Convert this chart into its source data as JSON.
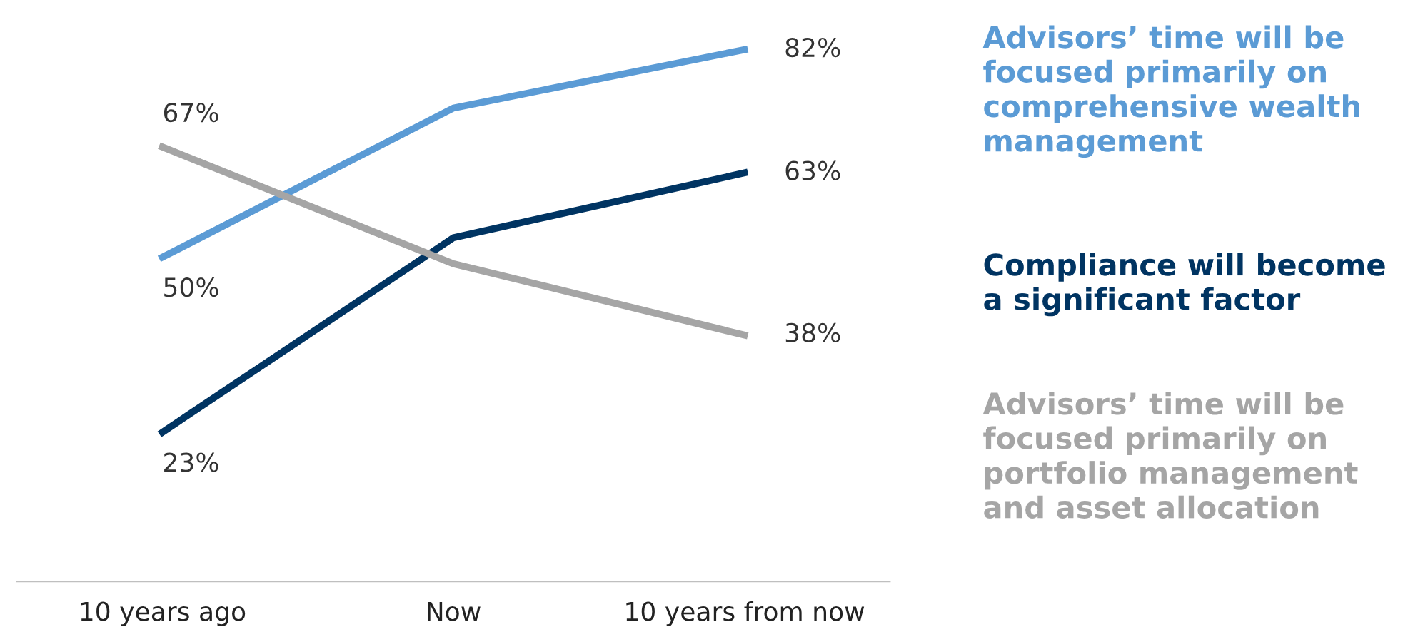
{
  "chart_data": {
    "type": "line",
    "categories": [
      "10 years ago",
      "Now",
      "10 years from now"
    ],
    "grid": false,
    "legend": "right",
    "marker": "none",
    "line_style": "solid",
    "series": [
      {
        "name": "Advisors’ time will be focused primarily on comprehensive wealth management",
        "color": "#5b9bd5",
        "values": [
          50,
          73,
          82
        ],
        "value_labels": [
          "50%",
          null,
          "82%"
        ]
      },
      {
        "name": "Compliance will become a significant factor",
        "color": "#003462",
        "values": [
          23,
          53,
          63
        ],
        "value_labels": [
          "23%",
          null,
          "63%"
        ]
      },
      {
        "name": "Advisors’ time will be focused primarily on portfolio management and asset allocation",
        "color": "#a5a5a5",
        "values": [
          67,
          49,
          38
        ],
        "value_labels": [
          "67%",
          null,
          "38%"
        ]
      }
    ]
  }
}
